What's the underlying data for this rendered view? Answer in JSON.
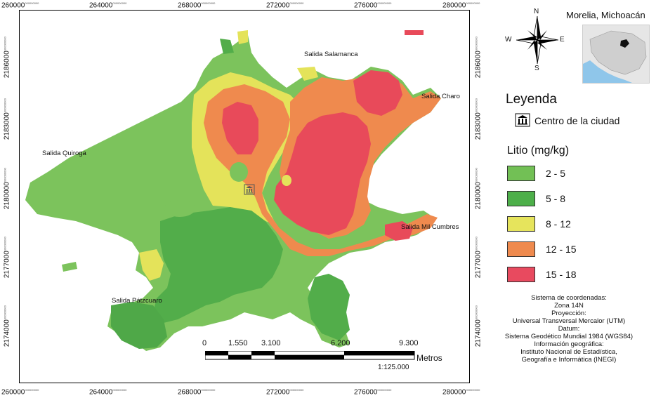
{
  "map": {
    "x_ticks": [
      "260000",
      "264000",
      "268000",
      "272000",
      "276000",
      "280000"
    ],
    "y_ticks": [
      "2186000",
      "2183000",
      "2180000",
      "2177000",
      "2174000"
    ],
    "tick_superscript": "000000000",
    "places": {
      "salamanca": "Salida Salamanca",
      "charo": "Salida Charo",
      "quiroga": "Salida Quiroga",
      "mil_cumbres": "Salida Mil Cumbres",
      "patzcuaro": "Salida Pátzcuaro"
    }
  },
  "compass": {
    "n": "N",
    "s": "S",
    "e": "E",
    "w": "W"
  },
  "inset": {
    "title": "Morelia, Michoacán"
  },
  "legend": {
    "title": "Leyenda",
    "center_label": "Centro de la ciudad",
    "variable_title": "Litio (mg/kg)",
    "classes": [
      {
        "label": "2 - 5",
        "color": "#72c055"
      },
      {
        "label": "5 - 8",
        "color": "#4daf4a"
      },
      {
        "label": "8 - 12",
        "color": "#e6e45c"
      },
      {
        "label": "12 - 15",
        "color": "#ef8a4e"
      },
      {
        "label": "15 - 18",
        "color": "#e84a5f"
      }
    ]
  },
  "scale_bar": {
    "labels": [
      "0",
      "1.550",
      "3.100",
      "6.200",
      "9.300"
    ],
    "unit": "Metros",
    "ratio": "1:125.000"
  },
  "info": {
    "lines": [
      "Sistema de coordenadas:",
      "Zona 14N",
      "Proyección:",
      "Universal Transversal Mercalor (UTM)",
      "Datum:",
      "Sistema Geodético Mundial 1984 (WGS84)",
      "Información geográfica:",
      "Instituto Nacional de Estadística,",
      "Geografía e Informática (INEGI)"
    ]
  }
}
